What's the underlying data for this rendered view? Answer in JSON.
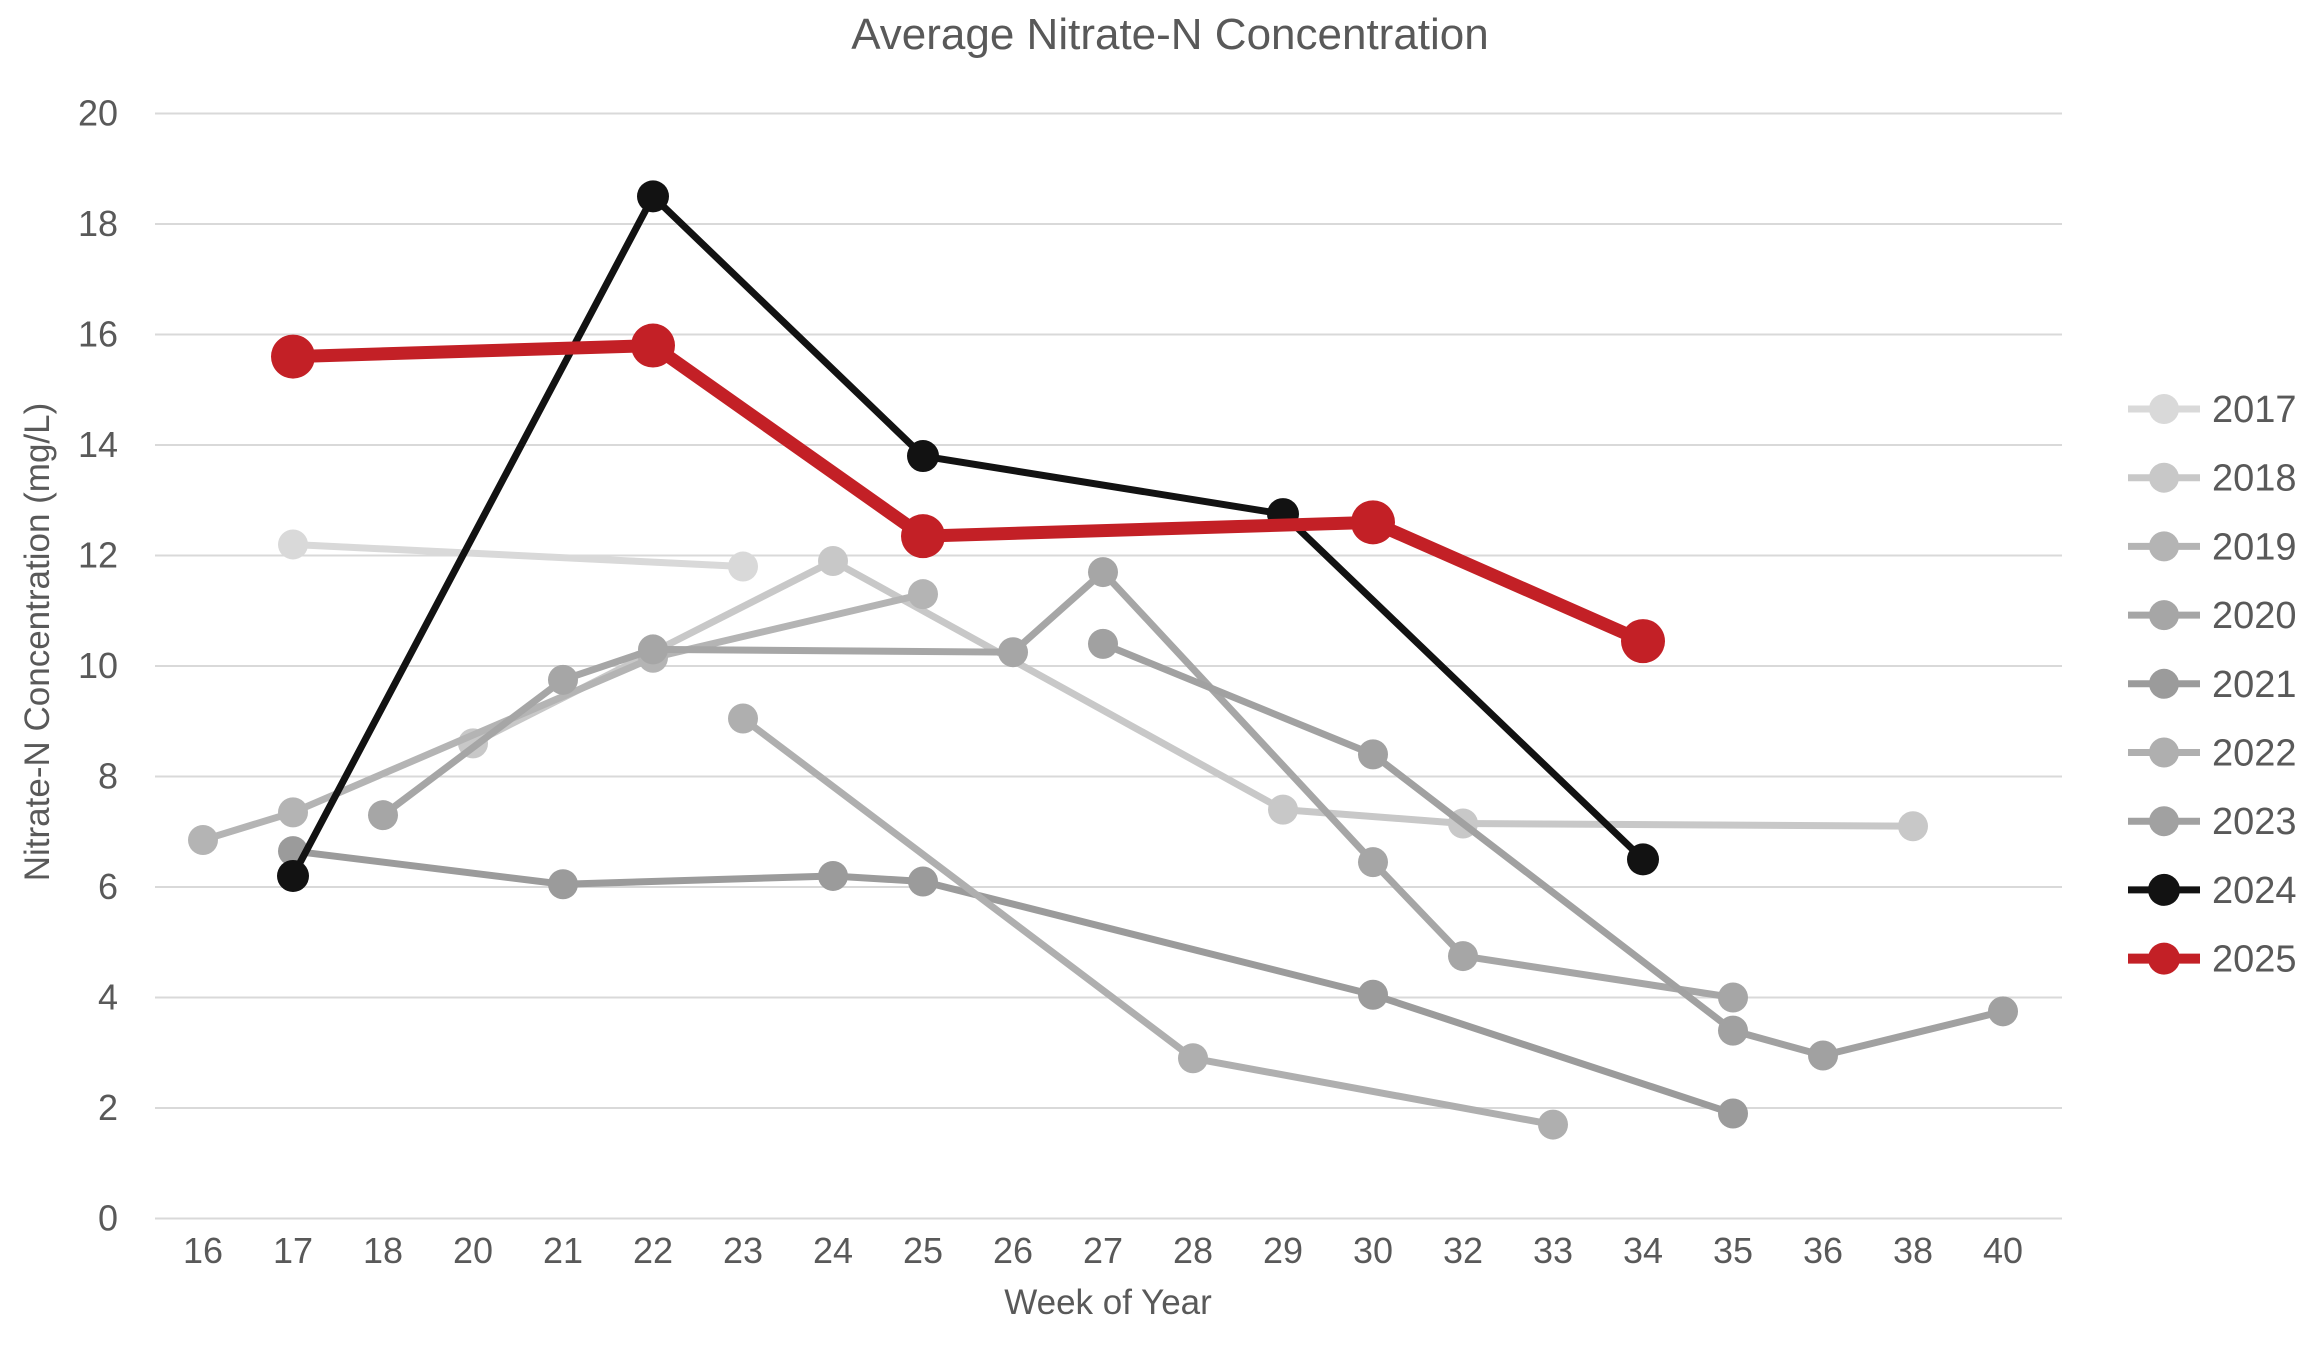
{
  "chart_title": "Average Nitrate-N Concentration",
  "chart_data": {
    "type": "line",
    "title": "Average Nitrate-N Concentration",
    "xlabel": "Week of Year",
    "ylabel": "Nitrate-N Concentration (mg/L)",
    "x_categories": [
      "16",
      "17",
      "18",
      "20",
      "21",
      "22",
      "23",
      "24",
      "25",
      "26",
      "27",
      "28",
      "29",
      "30",
      "32",
      "33",
      "34",
      "35",
      "36",
      "38",
      "40"
    ],
    "ylim": [
      0,
      20
    ],
    "ytick_step": 2,
    "ytick_labels": [
      "0",
      "2",
      "4",
      "6",
      "8",
      "10",
      "12",
      "14",
      "16",
      "18",
      "20"
    ],
    "grid": "horizontal",
    "gridline_color": "#D9D9D9",
    "text_color": "#595959",
    "legend_position": "right",
    "series": [
      {
        "name": "2017",
        "color": "#D9D9D9",
        "line_width": 7,
        "marker_radius": 15,
        "points": [
          [
            17,
            12.2
          ],
          [
            23,
            11.8
          ]
        ]
      },
      {
        "name": "2018",
        "color": "#C8C8C8",
        "line_width": 7,
        "marker_radius": 15,
        "points": [
          [
            20,
            8.6
          ],
          [
            24,
            11.9
          ],
          [
            29,
            7.4
          ],
          [
            32,
            7.15
          ],
          [
            38,
            7.1
          ]
        ]
      },
      {
        "name": "2019",
        "color": "#B4B4B4",
        "line_width": 7,
        "marker_radius": 15,
        "points": [
          [
            16,
            6.85
          ],
          [
            17,
            7.35
          ],
          [
            22,
            10.15
          ],
          [
            25,
            11.3
          ]
        ]
      },
      {
        "name": "2020",
        "color": "#A6A6A6",
        "line_width": 7,
        "marker_radius": 15,
        "points": [
          [
            18,
            7.3
          ],
          [
            21,
            9.75
          ],
          [
            22,
            10.3
          ],
          [
            26,
            10.25
          ],
          [
            27,
            11.7
          ],
          [
            30,
            6.45
          ],
          [
            32,
            4.75
          ],
          [
            35,
            4.0
          ]
        ]
      },
      {
        "name": "2021",
        "color": "#9B9B9B",
        "line_width": 7,
        "marker_radius": 15,
        "points": [
          [
            17,
            6.65
          ],
          [
            21,
            6.05
          ],
          [
            24,
            6.2
          ],
          [
            25,
            6.1
          ],
          [
            30,
            4.05
          ],
          [
            35,
            1.9
          ]
        ]
      },
      {
        "name": "2022",
        "color": "#AFAFAF",
        "line_width": 7,
        "marker_radius": 15,
        "points": [
          [
            23,
            9.05
          ],
          [
            28,
            2.9
          ],
          [
            33,
            1.7
          ]
        ]
      },
      {
        "name": "2023",
        "color": "#A1A1A1",
        "line_width": 7,
        "marker_radius": 15,
        "points": [
          [
            27,
            10.4
          ],
          [
            30,
            8.4
          ],
          [
            35,
            3.4
          ],
          [
            36,
            2.95
          ],
          [
            40,
            3.75
          ]
        ]
      },
      {
        "name": "2024",
        "color": "#121212",
        "line_width": 7,
        "marker_radius": 16,
        "points": [
          [
            17,
            6.2
          ],
          [
            22,
            18.5
          ],
          [
            25,
            13.8
          ],
          [
            29,
            12.75
          ],
          [
            34,
            6.5
          ]
        ]
      },
      {
        "name": "2025",
        "color": "#C32026",
        "line_width": 13,
        "marker_radius": 22,
        "points": [
          [
            17,
            15.6
          ],
          [
            22,
            15.8
          ],
          [
            25,
            12.35
          ],
          [
            30,
            12.6
          ],
          [
            34,
            10.45
          ]
        ]
      }
    ],
    "legend_entries": [
      "2017",
      "2018",
      "2019",
      "2020",
      "2021",
      "2022",
      "2023",
      "2024",
      "2025"
    ]
  }
}
